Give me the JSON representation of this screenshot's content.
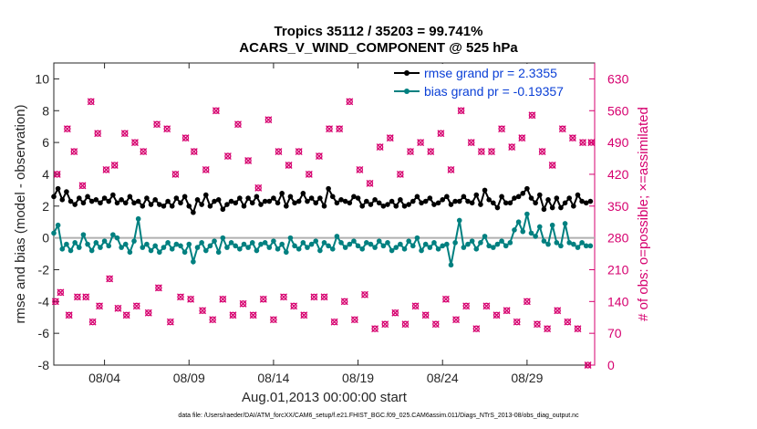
{
  "chart_data": {
    "type": "line",
    "title": "Tropics 35112 / 35203 = 99.741%",
    "subtitle": "ACARS_V_WIND_COMPONENT @ 525 hPa",
    "xlabel": "Aug.01,2013 00:00:00 start",
    "ylabel": "rmse and bias (model - observation)",
    "y2label": "# of obs: o=possible; ×=assimilated",
    "xlim": [
      0,
      32
    ],
    "ylim": [
      -8,
      11
    ],
    "y2lim": [
      0,
      665
    ],
    "x_ticks": [
      3,
      8,
      13,
      18,
      23,
      28
    ],
    "x_tick_labels": [
      "08/04",
      "08/09",
      "08/14",
      "08/19",
      "08/24",
      "08/29"
    ],
    "y_ticks": [
      -8,
      -6,
      -4,
      -2,
      0,
      2,
      4,
      6,
      8,
      10
    ],
    "y_tick_labels": [
      "-8",
      "-6",
      "-4",
      "-2",
      "0",
      "2",
      "4",
      "6",
      "8",
      "10"
    ],
    "y2_ticks": [
      0,
      70,
      140,
      210,
      280,
      350,
      420,
      490,
      560,
      630
    ],
    "y2_tick_labels": [
      "0",
      "70",
      "140",
      "210",
      "280",
      "350",
      "420",
      "490",
      "560",
      "630"
    ],
    "legend": {
      "position": "top-right",
      "entries": [
        "rmse grand pr = 2.3355",
        "bias grand pr = -0.19357"
      ]
    },
    "series": [
      {
        "name": "rmse grand pr = 2.3355",
        "color": "#000000",
        "x": [
          0.0,
          0.25,
          0.5,
          0.75,
          1.0,
          1.25,
          1.5,
          1.75,
          2.0,
          2.25,
          2.5,
          2.75,
          3.0,
          3.25,
          3.5,
          3.75,
          4.0,
          4.25,
          4.5,
          4.75,
          5.0,
          5.25,
          5.5,
          5.75,
          6.0,
          6.25,
          6.5,
          6.75,
          7.0,
          7.25,
          7.5,
          7.75,
          8.0,
          8.25,
          8.5,
          8.75,
          9.0,
          9.25,
          9.5,
          9.75,
          10.0,
          10.25,
          10.5,
          10.75,
          11.0,
          11.25,
          11.5,
          11.75,
          12.0,
          12.25,
          12.5,
          12.75,
          13.0,
          13.25,
          13.5,
          13.75,
          14.0,
          14.25,
          14.5,
          14.75,
          15.0,
          15.25,
          15.5,
          15.75,
          16.0,
          16.25,
          16.5,
          16.75,
          17.0,
          17.25,
          17.5,
          17.75,
          18.0,
          18.25,
          18.5,
          18.75,
          19.0,
          19.25,
          19.5,
          19.75,
          20.0,
          20.25,
          20.5,
          20.75,
          21.0,
          21.25,
          21.5,
          21.75,
          22.0,
          22.25,
          22.5,
          22.75,
          23.0,
          23.25,
          23.5,
          23.75,
          24.0,
          24.25,
          24.5,
          24.75,
          25.0,
          25.25,
          25.5,
          25.75,
          26.0,
          26.25,
          26.5,
          26.75,
          27.0,
          27.25,
          27.5,
          27.75,
          28.0,
          28.25,
          28.5,
          28.75,
          29.0,
          29.25,
          29.5,
          29.75,
          30.0,
          30.25,
          30.5,
          30.75,
          31.0,
          31.25,
          31.5,
          31.75
        ],
        "values": [
          2.6,
          3.1,
          2.4,
          2.9,
          2.3,
          2.1,
          2.5,
          2.2,
          2.6,
          2.3,
          2.4,
          2.2,
          2.5,
          2.3,
          2.7,
          2.2,
          2.4,
          2.2,
          2.6,
          2.2,
          2.3,
          2.0,
          2.5,
          2.1,
          2.4,
          2.1,
          2.0,
          2.3,
          2.0,
          2.5,
          2.2,
          2.6,
          2.0,
          1.6,
          2.4,
          2.1,
          2.7,
          2.0,
          2.3,
          2.4,
          1.8,
          2.1,
          2.3,
          2.2,
          2.5,
          2.0,
          2.5,
          2.2,
          2.6,
          2.1,
          2.3,
          2.3,
          2.5,
          2.2,
          2.8,
          2.0,
          2.6,
          2.2,
          2.3,
          2.8,
          2.3,
          2.5,
          2.2,
          2.5,
          2.0,
          3.1,
          2.6,
          2.2,
          2.4,
          2.3,
          2.2,
          2.6,
          2.5,
          2.0,
          2.3,
          2.1,
          2.4,
          2.2,
          2.0,
          2.1,
          2.3,
          2.0,
          2.4,
          2.0,
          2.1,
          2.3,
          2.6,
          2.2,
          2.3,
          2.5,
          2.1,
          2.2,
          2.4,
          2.6,
          2.1,
          2.3,
          2.3,
          2.6,
          2.3,
          2.2,
          2.7,
          2.1,
          3.0,
          2.4,
          2.2,
          1.9,
          2.6,
          2.2,
          2.2,
          2.5,
          2.6,
          2.8,
          3.1,
          2.5,
          2.2,
          2.7,
          1.8,
          2.4,
          1.9,
          2.5,
          1.9,
          2.2,
          2.5,
          2.0,
          2.7,
          2.3,
          2.2,
          2.3
        ]
      },
      {
        "name": "bias grand pr = -0.19357",
        "color": "#008080",
        "x": [
          0.0,
          0.25,
          0.5,
          0.75,
          1.0,
          1.25,
          1.5,
          1.75,
          2.0,
          2.25,
          2.5,
          2.75,
          3.0,
          3.25,
          3.5,
          3.75,
          4.0,
          4.25,
          4.5,
          4.75,
          5.0,
          5.25,
          5.5,
          5.75,
          6.0,
          6.25,
          6.5,
          6.75,
          7.0,
          7.25,
          7.5,
          7.75,
          8.0,
          8.25,
          8.5,
          8.75,
          9.0,
          9.25,
          9.5,
          9.75,
          10.0,
          10.25,
          10.5,
          10.75,
          11.0,
          11.25,
          11.5,
          11.75,
          12.0,
          12.25,
          12.5,
          12.75,
          13.0,
          13.25,
          13.5,
          13.75,
          14.0,
          14.25,
          14.5,
          14.75,
          15.0,
          15.25,
          15.5,
          15.75,
          16.0,
          16.25,
          16.5,
          16.75,
          17.0,
          17.25,
          17.5,
          17.75,
          18.0,
          18.25,
          18.5,
          18.75,
          19.0,
          19.25,
          19.5,
          19.75,
          20.0,
          20.25,
          20.5,
          20.75,
          21.0,
          21.25,
          21.5,
          21.75,
          22.0,
          22.25,
          22.5,
          22.75,
          23.0,
          23.25,
          23.5,
          23.75,
          24.0,
          24.25,
          24.5,
          24.75,
          25.0,
          25.25,
          25.5,
          25.75,
          26.0,
          26.25,
          26.5,
          26.75,
          27.0,
          27.25,
          27.5,
          27.75,
          28.0,
          28.25,
          28.5,
          28.75,
          29.0,
          29.25,
          29.5,
          29.75,
          30.0,
          30.25,
          30.5,
          30.75,
          31.0,
          31.25,
          31.5,
          31.75
        ],
        "values": [
          0.3,
          0.8,
          -0.7,
          -0.4,
          -0.8,
          -0.3,
          -0.6,
          0.2,
          -0.4,
          -0.8,
          -0.3,
          -0.6,
          -0.2,
          -0.5,
          0.2,
          0.0,
          -0.6,
          -0.4,
          -0.9,
          -0.2,
          1.2,
          -0.6,
          -0.4,
          -0.8,
          -0.5,
          -0.9,
          -0.6,
          -0.3,
          -0.7,
          -0.4,
          -0.5,
          -0.9,
          -0.4,
          -1.5,
          -0.6,
          -0.3,
          -0.8,
          -0.5,
          -0.2,
          -0.9,
          0.0,
          -0.6,
          -0.3,
          -0.5,
          -0.7,
          -0.4,
          -0.6,
          -0.3,
          -0.8,
          -0.4,
          -0.3,
          -0.6,
          -0.2,
          -0.7,
          -0.4,
          -0.9,
          0.0,
          -0.5,
          -0.7,
          -0.3,
          -0.6,
          -0.4,
          -0.2,
          -0.8,
          -0.3,
          -0.5,
          -0.7,
          0.1,
          -0.3,
          -0.6,
          -0.4,
          -0.2,
          -0.5,
          -0.7,
          -0.3,
          -0.4,
          -0.6,
          -0.2,
          -0.5,
          -0.3,
          -0.8,
          -0.6,
          -0.4,
          -0.7,
          -0.2,
          -0.5,
          0.0,
          -0.8,
          -0.4,
          -0.6,
          -0.3,
          -0.7,
          -0.5,
          -0.4,
          -1.7,
          -0.3,
          1.1,
          -0.6,
          -0.4,
          -0.2,
          -0.7,
          -0.3,
          0.1,
          -0.5,
          -0.6,
          -0.4,
          -0.2,
          -0.5,
          -0.3,
          0.5,
          1.0,
          0.4,
          1.5,
          0.3,
          0.1,
          0.7,
          -0.2,
          -0.4,
          0.8,
          -0.3,
          -0.5,
          0.9,
          -0.3,
          -0.4,
          -0.6,
          -0.3,
          -0.5,
          -0.5
        ]
      }
    ],
    "obs_possible": {
      "name": "possible",
      "color": "#d6006f",
      "x": [
        0.2,
        0.8,
        1.2,
        1.7,
        2.2,
        2.6,
        3.1,
        3.6,
        4.2,
        4.8,
        5.3,
        6.1,
        6.7,
        7.2,
        7.8,
        8.3,
        9.0,
        9.6,
        10.3,
        10.9,
        11.5,
        12.1,
        12.7,
        13.3,
        13.9,
        14.5,
        15.1,
        15.7,
        16.3,
        16.9,
        17.5,
        18.1,
        18.7,
        19.3,
        19.9,
        20.5,
        21.1,
        21.7,
        22.3,
        22.9,
        23.5,
        24.1,
        24.7,
        25.3,
        25.9,
        26.5,
        27.1,
        27.7,
        28.3,
        28.9,
        29.5,
        30.1,
        30.7,
        31.3,
        31.8
      ],
      "values": [
        420,
        520,
        470,
        395,
        580,
        510,
        430,
        440,
        510,
        490,
        470,
        530,
        520,
        420,
        500,
        470,
        430,
        560,
        460,
        530,
        450,
        390,
        540,
        470,
        440,
        470,
        420,
        460,
        520,
        520,
        580,
        430,
        400,
        480,
        500,
        420,
        470,
        490,
        470,
        510,
        430,
        560,
        490,
        470,
        470,
        520,
        480,
        500,
        550,
        470,
        440,
        520,
        500,
        490,
        490
      ]
    },
    "obs_assimilated": {
      "name": "assimilated",
      "color": "#d6006f",
      "x": [
        0.1,
        0.4,
        0.9,
        1.4,
        1.9,
        2.3,
        2.7,
        3.3,
        3.8,
        4.3,
        4.9,
        5.6,
        6.2,
        6.9,
        7.5,
        8.1,
        8.8,
        9.4,
        10.0,
        10.6,
        11.2,
        11.8,
        12.4,
        13.0,
        13.6,
        14.2,
        14.8,
        15.4,
        16.0,
        16.6,
        17.2,
        17.8,
        18.4,
        19.0,
        19.6,
        20.2,
        20.8,
        21.4,
        22.0,
        22.6,
        23.2,
        23.8,
        24.4,
        25.0,
        25.6,
        26.2,
        26.8,
        27.4,
        28.0,
        28.6,
        29.2,
        29.8,
        30.4,
        31.0,
        31.6
      ],
      "values": [
        140,
        160,
        110,
        150,
        150,
        95,
        130,
        190,
        125,
        110,
        130,
        115,
        170,
        95,
        150,
        145,
        120,
        100,
        145,
        110,
        135,
        110,
        145,
        100,
        150,
        130,
        110,
        150,
        150,
        95,
        140,
        100,
        155,
        80,
        90,
        115,
        90,
        130,
        110,
        90,
        145,
        100,
        130,
        80,
        130,
        110,
        120,
        95,
        140,
        90,
        80,
        120,
        95,
        80,
        0
      ]
    }
  }
}
